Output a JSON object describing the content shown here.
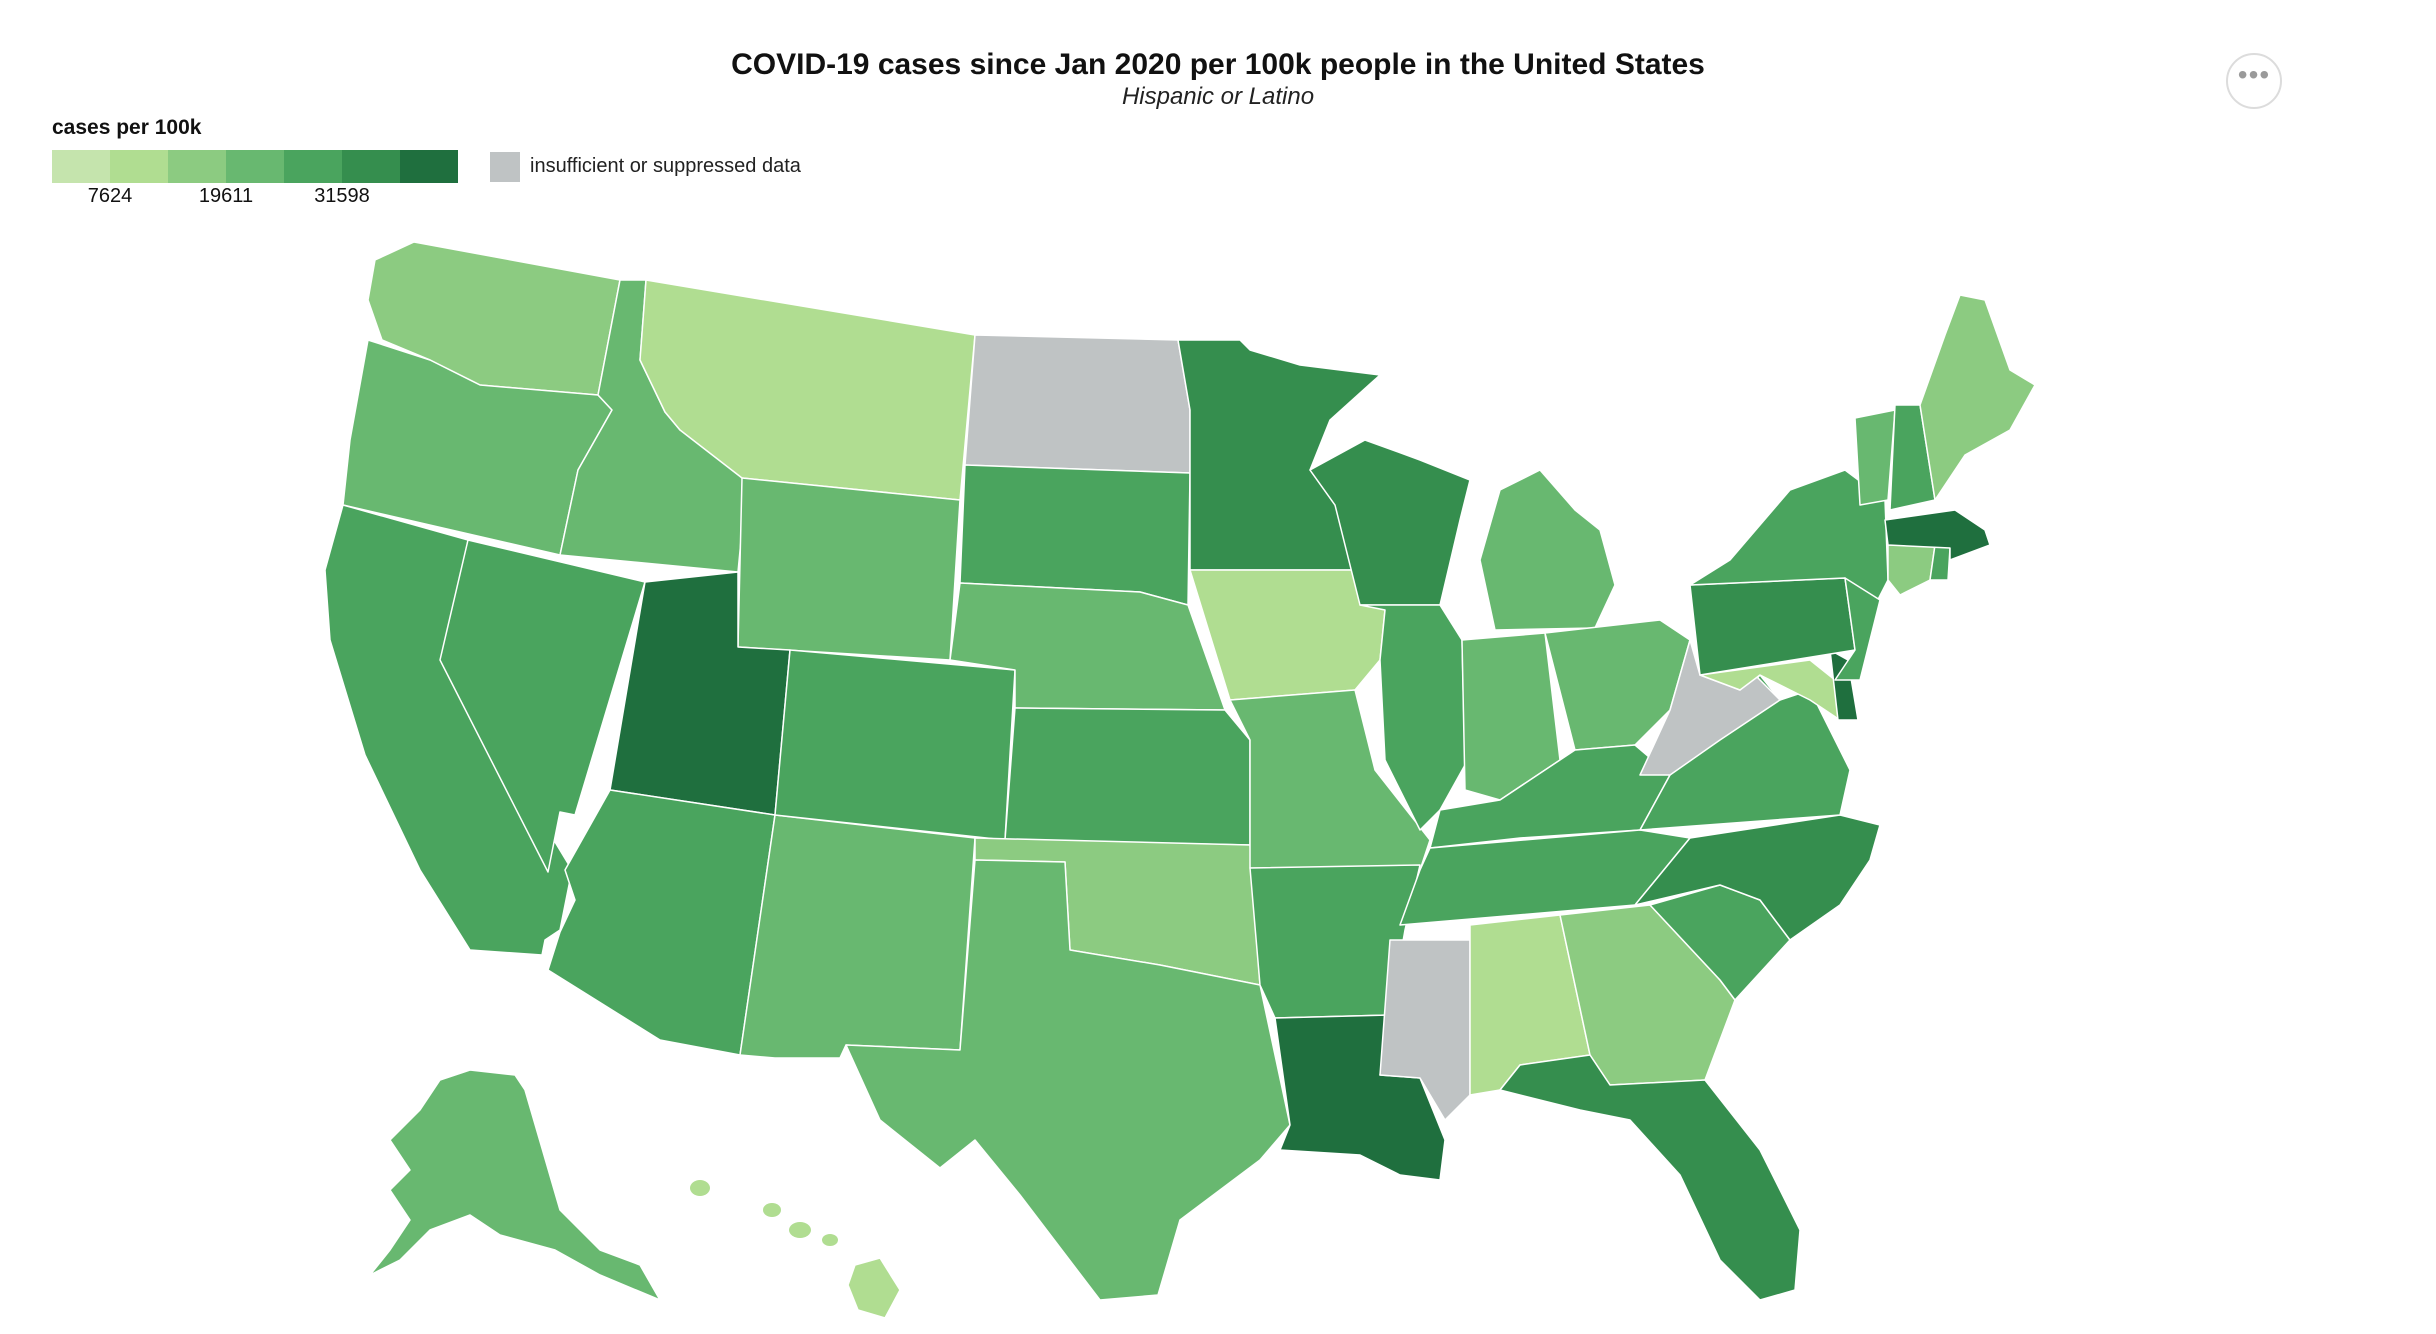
{
  "title": "COVID-19 cases since Jan 2020 per 100k people in the United States",
  "subtitle": "Hispanic or Latino",
  "legend": {
    "title": "cases per 100k",
    "colors": [
      "#c5e4ad",
      "#b0dd91",
      "#8ccb81",
      "#68b870",
      "#4aa45e",
      "#358e4e",
      "#1f6f3e"
    ],
    "ticks": [
      "7624",
      "19611",
      "31598"
    ],
    "no_data_label": "insufficient or suppressed data",
    "no_data_color": "#bfc3c4"
  },
  "menu_icon": "more-horizontal-icon",
  "states": {
    "WA": 3,
    "OR": 4,
    "CA": 5,
    "NV": 5,
    "ID": 4,
    "MT": 2,
    "WY": 4,
    "UT": 7,
    "AZ": 5,
    "NM": 4,
    "CO": 5,
    "ND": null,
    "SD": 5,
    "NE": 4,
    "KS": 5,
    "OK": 3,
    "TX": 4,
    "MN": 6,
    "IA": 2,
    "MO": 4,
    "AR": 5,
    "LA": 7,
    "WI": 6,
    "IL": 5,
    "MS": null,
    "MI": 4,
    "IN": 4,
    "OH": 4,
    "KY": 5,
    "TN": 5,
    "AL": 2,
    "GA": 3,
    "FL": 6,
    "SC": 5,
    "NC": 6,
    "VA": 5,
    "WV": null,
    "PA": 6,
    "NY": 5,
    "VT": 4,
    "NH": 5,
    "ME": 3,
    "MA": 7,
    "RI": 5,
    "CT": 3,
    "NJ": 5,
    "DE": 7,
    "MD": 2,
    "AK": 4,
    "HI": 2
  }
}
